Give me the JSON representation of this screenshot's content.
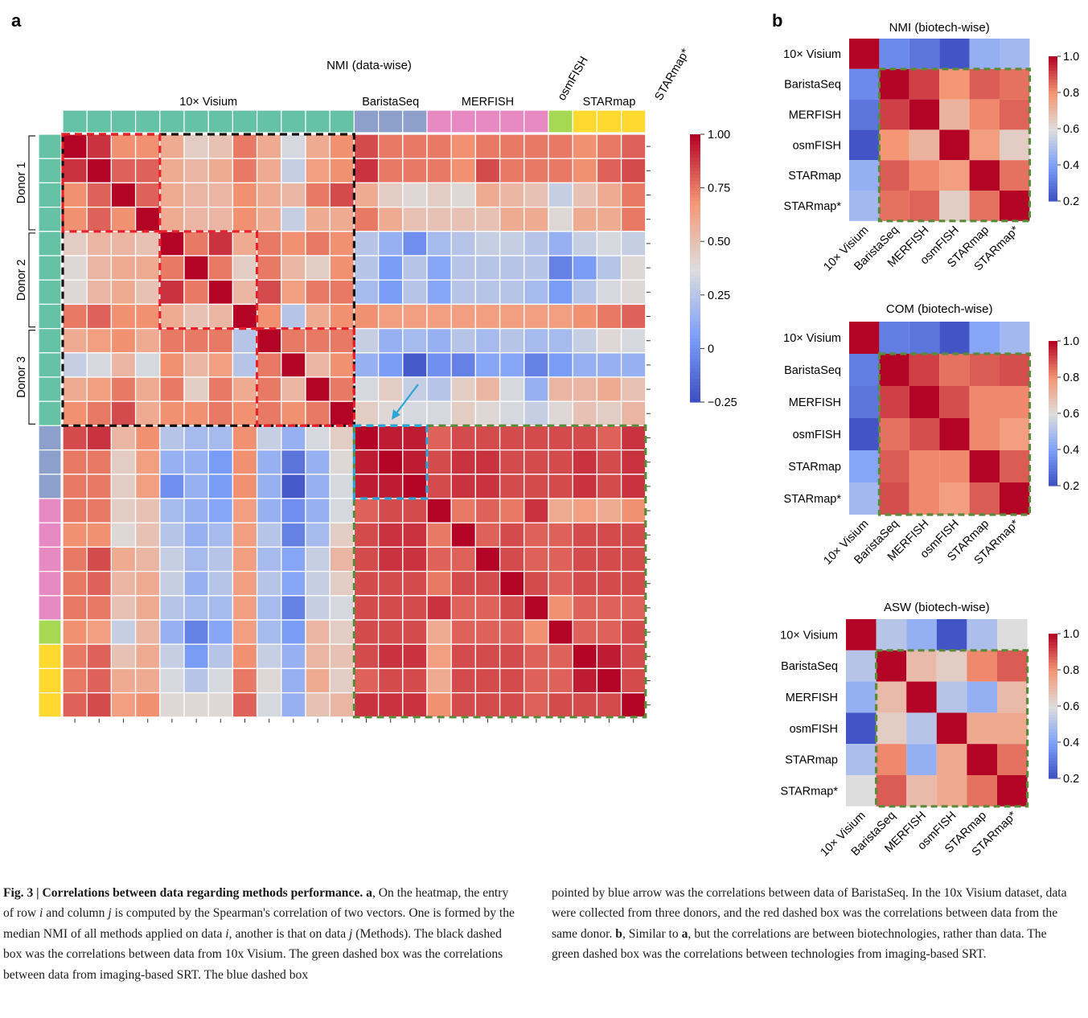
{
  "panel_labels": {
    "a": "a",
    "b": "b"
  },
  "caption": {
    "fig_label": "Fig. 3 | ",
    "title": "Correlations between data regarding methods performance.",
    "a_marker": "a",
    "text_left_1": ", On the heatmap, the entry of row ",
    "i": "i",
    "text_left_2": " and column ",
    "j": "j",
    "text_left_3": " is computed by the Spearman's correlation of two vectors. One is formed by the median NMI of all methods applied on data ",
    "text_left_4": ", another is that on data ",
    "text_left_5": " (Methods). The black dashed box was the correlations between data from 10x Visium. The green dashed box was the correlations between data from imaging-based SRT. The blue dashed box",
    "text_right_1": "pointed by blue arrow was the correlations between data of BaristaSeq. In the 10x Visium dataset, data were collected from three donors, and the red dashed box was the correlations between data from the same donor. ",
    "b_marker": "b",
    "text_right_2": ", Similar to ",
    "a_marker2": "a",
    "text_right_3": ", but the correlations are between biotechnologies, rather than data. The green dashed box was the correlations between technologies from imaging-based SRT."
  },
  "colors": {
    "visium": "#66c2a5",
    "baristaseq": "#8da0cb",
    "merfish": "#e78ac3",
    "osmfish": "#a6d854",
    "starmap": "#ffd92f",
    "starmap_star": "#e5c494",
    "black_box": "#111111",
    "red_box": "#e8202a",
    "green_box": "#5a8a3a",
    "blue_box": "#2aa6d8",
    "arrow": "#2aa6d8"
  },
  "chart_data": [
    {
      "type": "heatmap",
      "title": "NMI (data-wise)",
      "groups": [
        {
          "label": "10× Visium",
          "count": 12,
          "color_key": "visium"
        },
        {
          "label": "BaristaSeq",
          "count": 3,
          "color_key": "baristaseq"
        },
        {
          "label": "MERFISH",
          "count": 5,
          "color_key": "merfish"
        },
        {
          "label": "osmFISH",
          "count": 1,
          "color_key": "osmfish"
        },
        {
          "label": "STARmap",
          "count": 3,
          "color_key": "starmap"
        },
        {
          "label": "STARmap*",
          "count": 1,
          "color_key": "starmap_star"
        }
      ],
      "donors": [
        {
          "label": "Donor 1",
          "count": 4
        },
        {
          "label": "Donor 2",
          "count": 4
        },
        {
          "label": "Donor 3",
          "count": 4
        }
      ],
      "colorbar": {
        "min": -0.25,
        "max": 1.0,
        "ticks": [
          {
            "value": 1.0,
            "label": "1.00"
          },
          {
            "value": 0.75,
            "label": "0.75"
          },
          {
            "value": 0.5,
            "label": "0.50"
          },
          {
            "value": 0.25,
            "label": "0.25"
          },
          {
            "value": 0.0,
            "label": "0"
          },
          {
            "value": -0.25,
            "label": "−0.25"
          }
        ]
      },
      "matrix": [
        [
          1.0,
          0.9,
          0.7,
          0.7,
          0.6,
          0.45,
          0.5,
          0.75,
          0.6,
          0.35,
          0.6,
          0.7,
          0.85,
          0.75,
          0.75,
          0.75,
          0.7,
          0.75,
          0.75,
          0.75,
          0.75,
          0.7,
          0.75,
          0.8
        ],
        [
          0.9,
          1.0,
          0.8,
          0.8,
          0.6,
          0.55,
          0.6,
          0.75,
          0.6,
          0.3,
          0.65,
          0.7,
          0.9,
          0.75,
          0.75,
          0.75,
          0.7,
          0.85,
          0.75,
          0.75,
          0.75,
          0.7,
          0.8,
          0.85
        ],
        [
          0.7,
          0.8,
          1.0,
          0.8,
          0.6,
          0.55,
          0.55,
          0.7,
          0.6,
          0.55,
          0.75,
          0.85,
          0.6,
          0.45,
          0.4,
          0.45,
          0.4,
          0.6,
          0.55,
          0.5,
          0.3,
          0.5,
          0.6,
          0.75
        ],
        [
          0.7,
          0.8,
          0.7,
          1.0,
          0.6,
          0.55,
          0.55,
          0.7,
          0.6,
          0.3,
          0.6,
          0.6,
          0.75,
          0.6,
          0.5,
          0.5,
          0.5,
          0.5,
          0.6,
          0.6,
          0.4,
          0.6,
          0.6,
          0.75
        ],
        [
          0.45,
          0.55,
          0.55,
          0.5,
          1.0,
          0.75,
          0.9,
          0.6,
          0.75,
          0.7,
          0.75,
          0.7,
          0.25,
          0.15,
          0.0,
          0.2,
          0.25,
          0.3,
          0.3,
          0.25,
          0.15,
          0.3,
          0.35,
          0.3
        ],
        [
          0.4,
          0.55,
          0.6,
          0.6,
          0.75,
          1.0,
          0.75,
          0.45,
          0.75,
          0.55,
          0.45,
          0.7,
          0.25,
          0.05,
          0.25,
          0.1,
          0.25,
          0.25,
          0.25,
          0.25,
          -0.05,
          0.05,
          0.25,
          0.4
        ],
        [
          0.4,
          0.55,
          0.6,
          0.5,
          0.9,
          0.75,
          1.0,
          0.55,
          0.85,
          0.65,
          0.75,
          0.75,
          0.2,
          0.05,
          0.25,
          0.1,
          0.25,
          0.25,
          0.25,
          0.2,
          0.05,
          0.25,
          0.35,
          0.4
        ],
        [
          0.75,
          0.8,
          0.7,
          0.7,
          0.6,
          0.5,
          0.55,
          1.0,
          0.7,
          0.25,
          0.6,
          0.7,
          0.7,
          0.65,
          0.65,
          0.65,
          0.65,
          0.65,
          0.65,
          0.65,
          0.65,
          0.7,
          0.75,
          0.8
        ],
        [
          0.6,
          0.65,
          0.7,
          0.6,
          0.75,
          0.75,
          0.75,
          0.25,
          1.0,
          0.75,
          0.75,
          0.75,
          0.3,
          0.15,
          0.2,
          0.15,
          0.25,
          0.2,
          0.25,
          0.2,
          0.2,
          0.3,
          0.4,
          0.35
        ],
        [
          0.3,
          0.35,
          0.55,
          0.35,
          0.7,
          0.55,
          0.65,
          0.25,
          0.75,
          1.0,
          0.55,
          0.7,
          0.15,
          0.05,
          -0.2,
          0.0,
          -0.05,
          0.1,
          0.1,
          -0.05,
          0.05,
          0.15,
          0.15,
          0.15
        ],
        [
          0.6,
          0.65,
          0.75,
          0.6,
          0.75,
          0.45,
          0.75,
          0.6,
          0.75,
          0.55,
          1.0,
          0.75,
          0.35,
          0.45,
          0.3,
          0.25,
          0.45,
          0.55,
          0.35,
          0.15,
          0.55,
          0.55,
          0.6,
          0.5
        ],
        [
          0.7,
          0.75,
          0.85,
          0.6,
          0.7,
          0.7,
          0.75,
          0.7,
          0.75,
          0.7,
          0.75,
          1.0,
          0.45,
          0.4,
          0.35,
          0.35,
          0.45,
          0.4,
          0.35,
          0.3,
          0.4,
          0.5,
          0.45,
          0.55
        ],
        [
          0.85,
          0.9,
          0.55,
          0.7,
          0.25,
          0.2,
          0.2,
          0.7,
          0.3,
          0.15,
          0.35,
          0.45,
          1.0,
          0.95,
          0.95,
          0.8,
          0.85,
          0.85,
          0.85,
          0.85,
          0.85,
          0.85,
          0.8,
          0.9
        ],
        [
          0.75,
          0.75,
          0.45,
          0.65,
          0.15,
          0.15,
          0.05,
          0.7,
          0.15,
          -0.1,
          0.15,
          0.4,
          0.95,
          1.0,
          0.95,
          0.85,
          0.9,
          0.9,
          0.85,
          0.85,
          0.85,
          0.9,
          0.85,
          0.9
        ],
        [
          0.75,
          0.75,
          0.45,
          0.65,
          0.0,
          0.15,
          0.05,
          0.7,
          0.15,
          -0.2,
          0.15,
          0.35,
          0.95,
          0.95,
          1.0,
          0.85,
          0.9,
          0.9,
          0.85,
          0.85,
          0.85,
          0.9,
          0.85,
          0.9
        ],
        [
          0.75,
          0.75,
          0.45,
          0.5,
          0.2,
          0.15,
          0.1,
          0.65,
          0.15,
          0.0,
          0.15,
          0.35,
          0.8,
          0.85,
          0.85,
          1.0,
          0.75,
          0.8,
          0.75,
          0.9,
          0.6,
          0.65,
          0.6,
          0.7
        ],
        [
          0.7,
          0.7,
          0.4,
          0.5,
          0.25,
          0.15,
          0.2,
          0.65,
          0.25,
          -0.05,
          0.2,
          0.45,
          0.85,
          0.9,
          0.9,
          0.75,
          1.0,
          0.8,
          0.85,
          0.8,
          0.8,
          0.85,
          0.85,
          0.85
        ],
        [
          0.75,
          0.85,
          0.6,
          0.55,
          0.3,
          0.2,
          0.25,
          0.65,
          0.2,
          0.1,
          0.3,
          0.55,
          0.85,
          0.9,
          0.9,
          0.8,
          0.8,
          1.0,
          0.85,
          0.8,
          0.8,
          0.85,
          0.85,
          0.85
        ],
        [
          0.75,
          0.8,
          0.55,
          0.6,
          0.3,
          0.15,
          0.25,
          0.65,
          0.25,
          0.1,
          0.3,
          0.45,
          0.85,
          0.85,
          0.85,
          0.75,
          0.85,
          0.85,
          1.0,
          0.85,
          0.8,
          0.85,
          0.85,
          0.85
        ],
        [
          0.75,
          0.75,
          0.5,
          0.6,
          0.25,
          0.2,
          0.2,
          0.65,
          0.2,
          -0.05,
          0.3,
          0.35,
          0.85,
          0.85,
          0.85,
          0.9,
          0.8,
          0.8,
          0.85,
          1.0,
          0.7,
          0.8,
          0.8,
          0.8
        ],
        [
          0.7,
          0.65,
          0.3,
          0.55,
          0.15,
          -0.05,
          0.1,
          0.65,
          0.2,
          0.05,
          0.55,
          0.45,
          0.85,
          0.85,
          0.85,
          0.6,
          0.8,
          0.8,
          0.8,
          0.7,
          1.0,
          0.8,
          0.8,
          0.85
        ],
        [
          0.75,
          0.8,
          0.5,
          0.6,
          0.3,
          0.05,
          0.25,
          0.7,
          0.3,
          0.15,
          0.55,
          0.5,
          0.85,
          0.9,
          0.9,
          0.65,
          0.85,
          0.85,
          0.85,
          0.8,
          0.8,
          1.0,
          0.95,
          0.85
        ],
        [
          0.75,
          0.8,
          0.6,
          0.6,
          0.35,
          0.25,
          0.35,
          0.75,
          0.4,
          0.15,
          0.6,
          0.45,
          0.8,
          0.85,
          0.85,
          0.6,
          0.85,
          0.85,
          0.85,
          0.8,
          0.8,
          0.95,
          1.0,
          0.85
        ],
        [
          0.8,
          0.85,
          0.65,
          0.7,
          0.4,
          0.4,
          0.4,
          0.8,
          0.35,
          0.15,
          0.5,
          0.55,
          0.9,
          0.9,
          0.9,
          0.7,
          0.85,
          0.85,
          0.85,
          0.8,
          0.85,
          0.85,
          0.85,
          1.0
        ]
      ]
    },
    {
      "type": "heatmap",
      "title": "NMI (biotech-wise)",
      "labels": [
        "10× Visium",
        "BaristaSeq",
        "MERFISH",
        "osmFISH",
        "STARmap",
        "STARmap*"
      ],
      "colorbar": {
        "min": 0.2,
        "max": 1.0,
        "ticks": [
          {
            "value": 1.0,
            "label": "1.0"
          },
          {
            "value": 0.8,
            "label": "0.8"
          },
          {
            "value": 0.6,
            "label": "0.6"
          },
          {
            "value": 0.4,
            "label": "0.4"
          },
          {
            "value": 0.2,
            "label": "0.2"
          }
        ]
      },
      "matrix": [
        [
          1.0,
          0.35,
          0.3,
          0.22,
          0.45,
          0.48
        ],
        [
          0.35,
          1.0,
          0.92,
          0.8,
          0.88,
          0.85
        ],
        [
          0.3,
          0.92,
          1.0,
          0.72,
          0.82,
          0.87
        ],
        [
          0.22,
          0.8,
          0.72,
          1.0,
          0.78,
          0.65
        ],
        [
          0.45,
          0.88,
          0.82,
          0.78,
          1.0,
          0.85
        ],
        [
          0.48,
          0.85,
          0.87,
          0.65,
          0.85,
          1.0
        ]
      ]
    },
    {
      "type": "heatmap",
      "title": "COM (biotech-wise)",
      "labels": [
        "10× Visium",
        "BaristaSeq",
        "MERFISH",
        "osmFISH",
        "STARmap",
        "STARmap*"
      ],
      "colorbar": {
        "min": 0.2,
        "max": 1.0,
        "ticks": [
          {
            "value": 1.0,
            "label": "1.0"
          },
          {
            "value": 0.8,
            "label": "0.8"
          },
          {
            "value": 0.6,
            "label": "0.6"
          },
          {
            "value": 0.4,
            "label": "0.4"
          },
          {
            "value": 0.2,
            "label": "0.2"
          }
        ]
      },
      "matrix": [
        [
          1.0,
          0.32,
          0.3,
          0.22,
          0.42,
          0.48
        ],
        [
          0.32,
          1.0,
          0.92,
          0.85,
          0.88,
          0.9
        ],
        [
          0.3,
          0.92,
          1.0,
          0.9,
          0.82,
          0.82
        ],
        [
          0.22,
          0.85,
          0.9,
          1.0,
          0.82,
          0.78
        ],
        [
          0.42,
          0.88,
          0.82,
          0.82,
          1.0,
          0.88
        ],
        [
          0.48,
          0.9,
          0.82,
          0.78,
          0.88,
          1.0
        ]
      ]
    },
    {
      "type": "heatmap",
      "title": "ASW (biotech-wise)",
      "labels": [
        "10× Visium",
        "BaristaSeq",
        "MERFISH",
        "osmFISH",
        "STARmap",
        "STARmap*"
      ],
      "colorbar": {
        "min": 0.2,
        "max": 1.0,
        "ticks": [
          {
            "value": 1.0,
            "label": "1.0"
          },
          {
            "value": 0.8,
            "label": "0.8"
          },
          {
            "value": 0.6,
            "label": "0.6"
          },
          {
            "value": 0.4,
            "label": "0.4"
          },
          {
            "value": 0.2,
            "label": "0.2"
          }
        ]
      },
      "matrix": [
        [
          1.0,
          0.52,
          0.45,
          0.22,
          0.5,
          0.6
        ],
        [
          0.52,
          1.0,
          0.7,
          0.65,
          0.82,
          0.88
        ],
        [
          0.45,
          0.7,
          1.0,
          0.52,
          0.45,
          0.7
        ],
        [
          0.22,
          0.65,
          0.52,
          1.0,
          0.75,
          0.75
        ],
        [
          0.5,
          0.82,
          0.45,
          0.75,
          1.0,
          0.85
        ],
        [
          0.6,
          0.88,
          0.7,
          0.75,
          0.85,
          1.0
        ]
      ]
    }
  ]
}
